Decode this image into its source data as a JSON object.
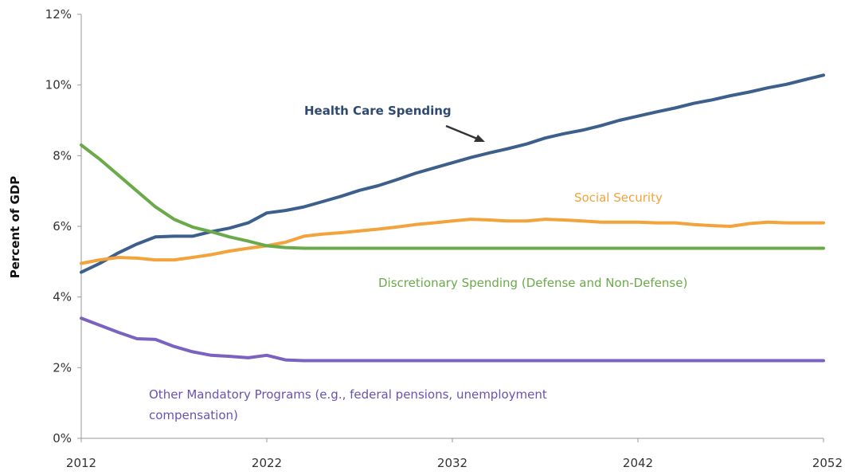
{
  "chart_data": {
    "type": "line",
    "title": "",
    "xlabel": "",
    "ylabel": "Percent of GDP",
    "x_ticks": [
      "2012",
      "2022",
      "2032",
      "2042",
      "2052"
    ],
    "y_ticks": [
      "0%",
      "2%",
      "4%",
      "6%",
      "8%",
      "10%",
      "12%"
    ],
    "xlim": [
      2012,
      2052
    ],
    "ylim": [
      0,
      12
    ],
    "grid": false,
    "legend": "none (series labeled directly on chart)",
    "x": [
      2012,
      2013,
      2014,
      2015,
      2016,
      2017,
      2018,
      2019,
      2020,
      2021,
      2022,
      2023,
      2024,
      2025,
      2026,
      2027,
      2028,
      2029,
      2030,
      2031,
      2032,
      2033,
      2034,
      2035,
      2036,
      2037,
      2038,
      2039,
      2040,
      2041,
      2042,
      2043,
      2044,
      2045,
      2046,
      2047,
      2048,
      2049,
      2050,
      2051,
      2052
    ],
    "series": [
      {
        "name": "Health Care Spending",
        "color": "#3c5f8c",
        "values": [
          4.7,
          4.95,
          5.25,
          5.5,
          5.7,
          5.72,
          5.72,
          5.85,
          5.95,
          6.1,
          6.38,
          6.45,
          6.55,
          6.7,
          6.85,
          7.02,
          7.15,
          7.32,
          7.5,
          7.65,
          7.8,
          7.95,
          8.08,
          8.2,
          8.33,
          8.5,
          8.62,
          8.72,
          8.85,
          9.0,
          9.12,
          9.24,
          9.35,
          9.48,
          9.58,
          9.7,
          9.8,
          9.92,
          10.02,
          10.15,
          10.28
        ]
      },
      {
        "name": "Social Security",
        "color": "#f2a33c",
        "values": [
          4.95,
          5.05,
          5.12,
          5.1,
          5.05,
          5.05,
          5.12,
          5.2,
          5.3,
          5.38,
          5.45,
          5.55,
          5.72,
          5.78,
          5.82,
          5.87,
          5.92,
          5.98,
          6.05,
          6.1,
          6.15,
          6.2,
          6.18,
          6.15,
          6.15,
          6.2,
          6.18,
          6.15,
          6.12,
          6.12,
          6.12,
          6.1,
          6.1,
          6.05,
          6.02,
          6.0,
          6.08,
          6.12,
          6.1,
          6.1,
          6.1
        ]
      },
      {
        "name": "Discretionary Spending (Defense and Non-Defense)",
        "color": "#6aaa4b",
        "values": [
          8.3,
          7.9,
          7.45,
          7.0,
          6.55,
          6.2,
          5.98,
          5.85,
          5.7,
          5.58,
          5.45,
          5.4,
          5.38,
          5.38,
          5.38,
          5.38,
          5.38,
          5.38,
          5.38,
          5.38,
          5.38,
          5.38,
          5.38,
          5.38,
          5.38,
          5.38,
          5.38,
          5.38,
          5.38,
          5.38,
          5.38,
          5.38,
          5.38,
          5.38,
          5.38,
          5.38,
          5.38,
          5.38,
          5.38,
          5.38,
          5.38
        ]
      },
      {
        "name": "Other Mandatory Programs (e.g., federal pensions, unemployment compensation)",
        "color": "#7b62c0",
        "values": [
          3.4,
          3.2,
          3.0,
          2.82,
          2.8,
          2.6,
          2.45,
          2.35,
          2.32,
          2.28,
          2.35,
          2.22,
          2.2,
          2.2,
          2.2,
          2.2,
          2.2,
          2.2,
          2.2,
          2.2,
          2.2,
          2.2,
          2.2,
          2.2,
          2.2,
          2.2,
          2.2,
          2.2,
          2.2,
          2.2,
          2.2,
          2.2,
          2.2,
          2.2,
          2.2,
          2.2,
          2.2,
          2.2,
          2.2,
          2.2,
          2.2
        ]
      }
    ],
    "annotations": {
      "health": "Health Care Spending",
      "social": "Social Security",
      "discretionary": "Discretionary Spending (Defense and Non-Defense)",
      "other_line1": "Other Mandatory Programs (e.g., federal pensions, unemployment",
      "other_line2": "compensation)"
    }
  }
}
